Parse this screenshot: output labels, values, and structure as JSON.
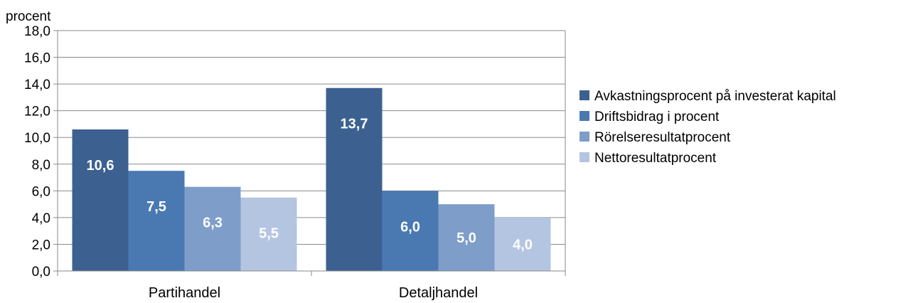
{
  "chart_data": {
    "type": "bar",
    "ylabel": "procent",
    "ylim": [
      0,
      18
    ],
    "ytick_step": 2,
    "ytick_labels": [
      "0,0",
      "2,0",
      "4,0",
      "6,0",
      "8,0",
      "10,0",
      "12,0",
      "14,0",
      "16,0",
      "18,0"
    ],
    "grid": true,
    "legend_position": "right",
    "categories": [
      "Partihandel",
      "Detaljhandel"
    ],
    "series": [
      {
        "name": "Avkastningsprocent på investerat kapital",
        "values": [
          10.6,
          13.7
        ],
        "labels": [
          "10,6",
          "13,7"
        ],
        "color": "#3c6191"
      },
      {
        "name": "Driftsbidrag i procent",
        "values": [
          7.5,
          6.0
        ],
        "labels": [
          "7,5",
          "6,0"
        ],
        "color": "#4a79b1"
      },
      {
        "name": "Rörelseresultatprocent",
        "values": [
          6.3,
          5.0
        ],
        "labels": [
          "6,3",
          "5,0"
        ],
        "color": "#7e9dc9"
      },
      {
        "name": "Nettoresultatprocent",
        "values": [
          5.5,
          4.0
        ],
        "labels": [
          "5,5",
          "4,0"
        ],
        "color": "#b4c5e1"
      }
    ]
  }
}
